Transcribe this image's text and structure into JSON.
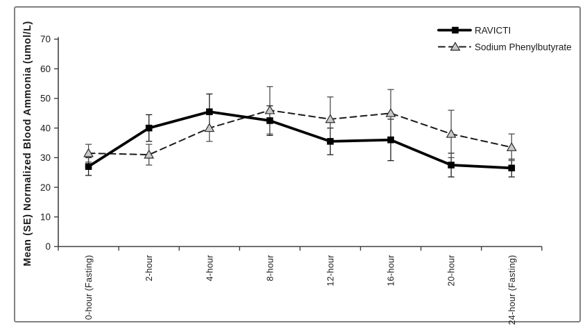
{
  "figure": {
    "background": "#ffffff",
    "border_color": "#808080"
  },
  "chart_data": {
    "type": "line",
    "title": "",
    "xlabel": "",
    "ylabel": "Mean (SE) Normalized Blood Ammonia (umol/L)",
    "ylim": [
      0,
      70
    ],
    "yticks": [
      0,
      10,
      20,
      30,
      40,
      50,
      60,
      70
    ],
    "grid": false,
    "legend_position": "top-right",
    "error_bars": "SE shown as vertical whiskers with caps on every point",
    "categories": [
      "0-hour  (Fasting)",
      "2-hour",
      "4-hour",
      "8-hour",
      "12-hour",
      "16-hour",
      "20-hour",
      "24-hour  (Fasting)"
    ],
    "series": [
      {
        "name": "RAVICTI",
        "marker": "filled-square",
        "marker_fill": "#000000",
        "line_style": "solid",
        "line_width": 3.8,
        "color": "#000000",
        "error_color": "#1c1c1c",
        "values": [
          27,
          40,
          45.5,
          42.5,
          35.5,
          36,
          27.5,
          26.5
        ],
        "se": [
          3,
          4.5,
          6,
          5,
          4.5,
          7,
          4,
          3
        ]
      },
      {
        "name": "Sodium Phenylbutyrate",
        "marker": "open-triangle",
        "marker_fill": "#c9c9c9",
        "line_style": "dashed",
        "line_width": 2,
        "color": "#1a1a1a",
        "error_color": "#4d4d4d",
        "values": [
          31.5,
          31,
          40,
          46,
          43,
          45,
          38,
          33.5
        ],
        "se": [
          3,
          3.5,
          4.5,
          8,
          7.5,
          8,
          8,
          4.5
        ]
      }
    ]
  }
}
